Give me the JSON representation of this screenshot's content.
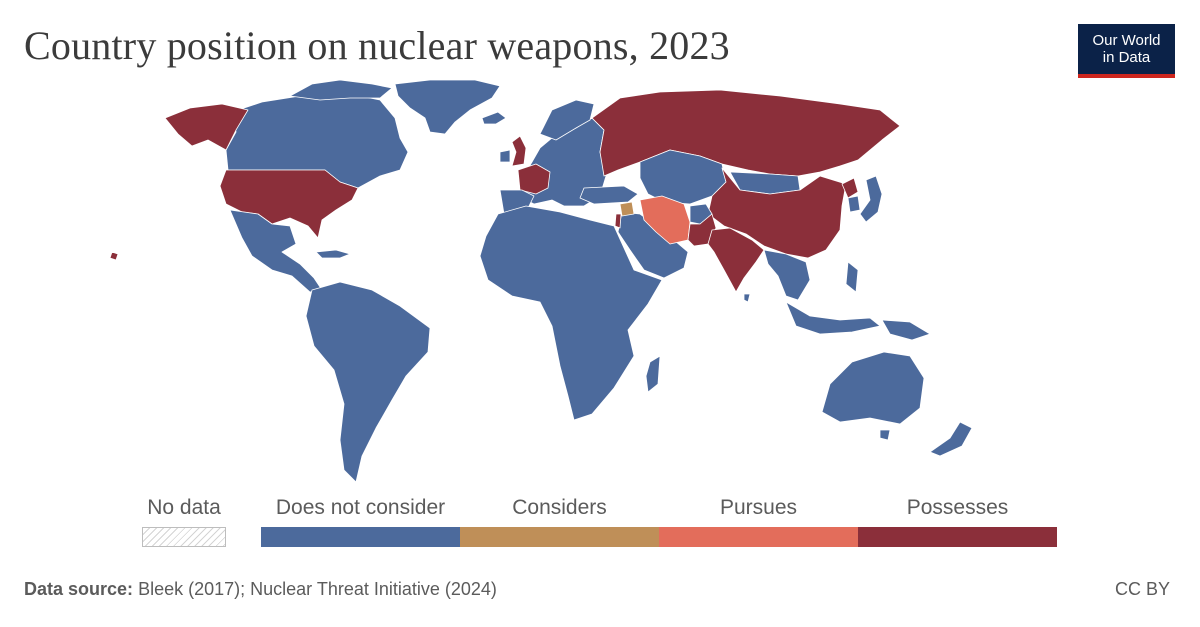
{
  "title": "Country position on nuclear weapons, 2023",
  "logo": {
    "line1": "Our World",
    "line2": "in Data"
  },
  "legend": {
    "no_data_label": "No data",
    "categories": [
      {
        "label": "Does not consider",
        "color": "#4c6a9c"
      },
      {
        "label": "Considers",
        "color": "#bf8f58"
      },
      {
        "label": "Pursues",
        "color": "#e36d5b"
      },
      {
        "label": "Possesses",
        "color": "#8b2f3a"
      }
    ]
  },
  "map": {
    "colors": {
      "does_not_consider": "#4c6a9c",
      "considers": "#bf8f58",
      "pursues": "#e36d5b",
      "possesses": "#8b2f3a",
      "borders": "#ffffff"
    },
    "regions": [
      {
        "name": "Canada & Greenland",
        "status": "Does not consider"
      },
      {
        "name": "Latin America",
        "status": "Does not consider"
      },
      {
        "name": "Africa",
        "status": "Does not consider"
      },
      {
        "name": "Europe",
        "status": "Does not consider"
      },
      {
        "name": "Central & Southeast Asia",
        "status": "Does not consider"
      },
      {
        "name": "Australia & Oceania",
        "status": "Does not consider"
      },
      {
        "name": "Syria",
        "status": "Considers"
      },
      {
        "name": "Iran",
        "status": "Pursues"
      },
      {
        "name": "United States",
        "status": "Possesses"
      },
      {
        "name": "Russia",
        "status": "Possesses"
      },
      {
        "name": "China",
        "status": "Possesses"
      },
      {
        "name": "India",
        "status": "Possesses"
      },
      {
        "name": "Pakistan",
        "status": "Possesses"
      },
      {
        "name": "North Korea",
        "status": "Possesses"
      },
      {
        "name": "United Kingdom",
        "status": "Possesses"
      },
      {
        "name": "France",
        "status": "Possesses"
      },
      {
        "name": "Israel",
        "status": "Possesses"
      }
    ]
  },
  "footer": {
    "source_label": "Data source:",
    "source_text": "Bleek (2017); Nuclear Threat Initiative (2024)",
    "license": "CC BY"
  }
}
